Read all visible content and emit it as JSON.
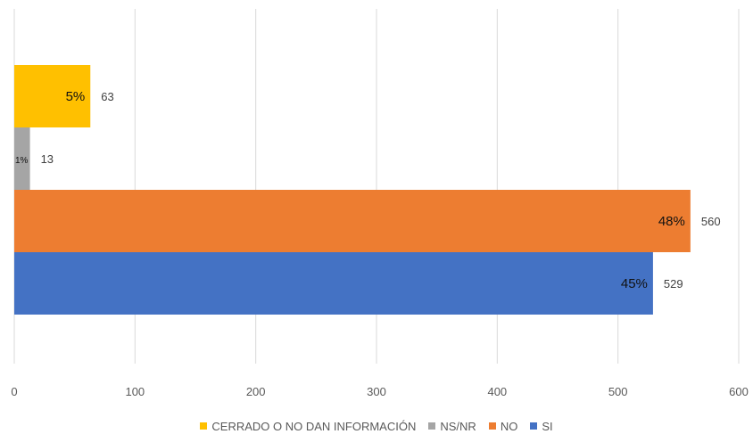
{
  "chart_data": {
    "type": "bar",
    "orientation": "horizontal",
    "xlim": [
      0,
      600
    ],
    "x_ticks": [
      "0",
      "100",
      "200",
      "300",
      "400",
      "500",
      "600"
    ],
    "grid": "vertical",
    "legend_position": "bottom",
    "series": [
      {
        "name": "CERRADO O NO DAN INFORMACIÓN",
        "value": 63,
        "percent_label": "5%",
        "color": "#FFC000"
      },
      {
        "name": "NS/NR",
        "value": 13,
        "percent_label": "1%",
        "color": "#A5A5A5"
      },
      {
        "name": "NO",
        "value": 560,
        "percent_label": "48%",
        "color": "#ED7D31"
      },
      {
        "name": "SI",
        "value": 529,
        "percent_label": "45%",
        "color": "#4472C4"
      }
    ]
  }
}
